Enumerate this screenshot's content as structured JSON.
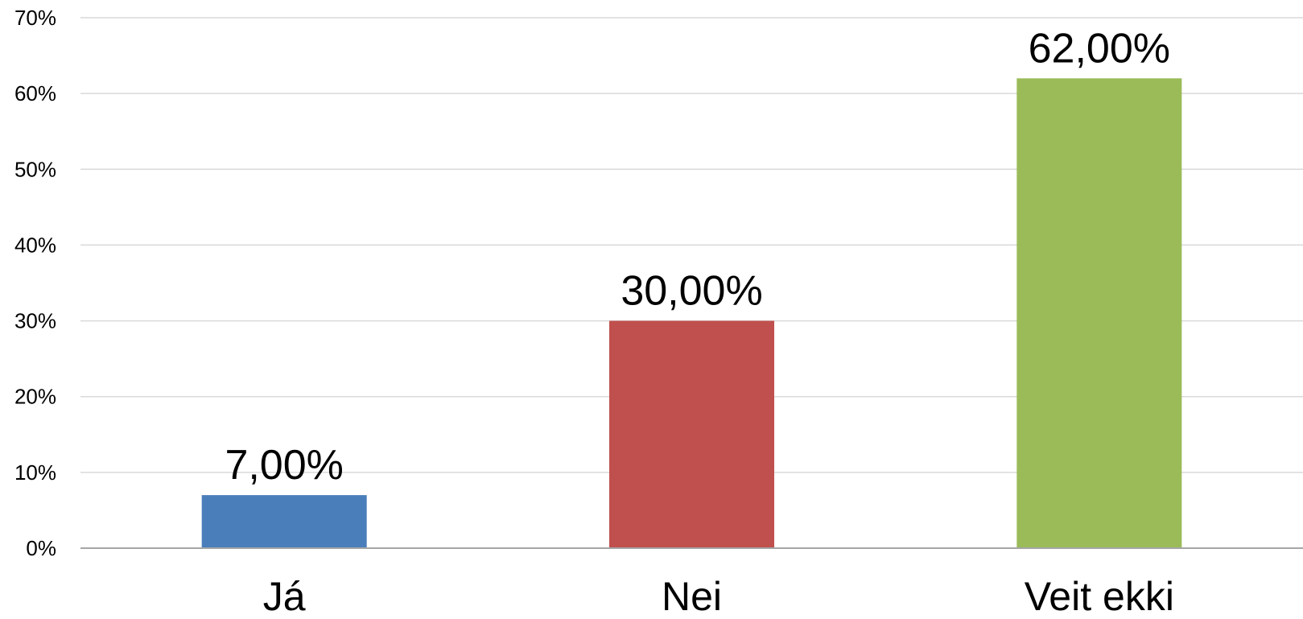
{
  "chart_data": {
    "type": "bar",
    "title": "",
    "xlabel": "",
    "ylabel": "",
    "categories": [
      "Já",
      "Nei",
      "Veit ekki"
    ],
    "values": [
      7,
      30,
      62
    ],
    "data_labels": [
      "7,00%",
      "30,00%",
      "62,00%"
    ],
    "colors": [
      "#4a7ebb",
      "#c0504d",
      "#9bbb59"
    ],
    "ylim": [
      0,
      70
    ],
    "yticks": [
      0,
      10,
      20,
      30,
      40,
      50,
      60,
      70
    ],
    "ytick_labels": [
      "0%",
      "10%",
      "20%",
      "30%",
      "40%",
      "50%",
      "60%",
      "70%"
    ],
    "grid": true,
    "legend": "none"
  }
}
